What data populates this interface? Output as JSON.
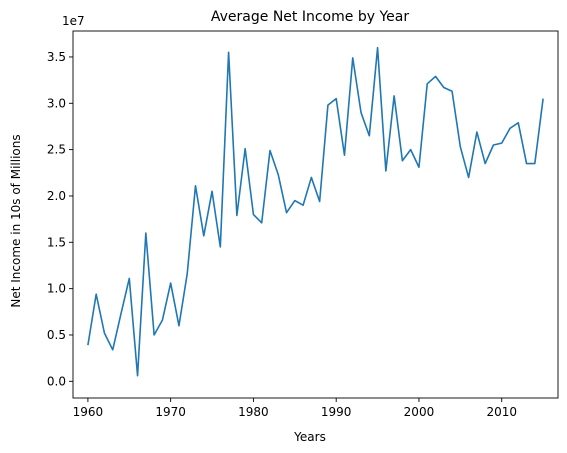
{
  "chart_data": {
    "type": "line",
    "title": "Average Net Income by Year",
    "xlabel": "Years",
    "ylabel": "Net Income in 10s of Millions",
    "offset_label": "1e7",
    "xlim": [
      1958.2,
      2016.8
    ],
    "ylim": [
      -0.18,
      3.78
    ],
    "x_ticks": [
      1960,
      1970,
      1980,
      1990,
      2000,
      2010
    ],
    "y_ticks": [
      0.0,
      0.5,
      1.0,
      1.5,
      2.0,
      2.5,
      3.0,
      3.5
    ],
    "y_tick_labels": [
      "0.0",
      "0.5",
      "1.0",
      "1.5",
      "2.0",
      "2.5",
      "3.0",
      "3.5"
    ],
    "grid": false,
    "line_color": "#1f77b4",
    "series": [
      {
        "x": [
          1960,
          1961,
          1962,
          1963,
          1964,
          1965,
          1966,
          1967,
          1968,
          1969,
          1970,
          1971,
          1972,
          1973,
          1974,
          1975,
          1976,
          1977,
          1978,
          1979,
          1980,
          1981,
          1982,
          1983,
          1984,
          1985,
          1986,
          1987,
          1988,
          1989,
          1990,
          1991,
          1992,
          1993,
          1994,
          1995,
          1996,
          1997,
          1998,
          1999,
          2000,
          2001,
          2002,
          2003,
          2004,
          2005,
          2006,
          2007,
          2008,
          2009,
          2010,
          2011,
          2012,
          2013,
          2014,
          2015
        ],
        "values": [
          0.39,
          0.94,
          0.52,
          0.34,
          0.73,
          1.11,
          0.06,
          1.6,
          0.5,
          0.66,
          1.06,
          0.6,
          1.16,
          2.11,
          1.57,
          2.05,
          1.45,
          3.55,
          1.79,
          2.51,
          1.8,
          1.71,
          2.49,
          2.23,
          1.82,
          1.95,
          1.9,
          2.2,
          1.94,
          2.98,
          3.05,
          2.44,
          3.49,
          2.9,
          2.65,
          3.6,
          2.27,
          3.08,
          2.38,
          2.5,
          2.31,
          3.21,
          3.29,
          3.17,
          3.13,
          2.53,
          2.2,
          2.69,
          2.35,
          2.55,
          2.57,
          2.73,
          2.79,
          2.35,
          2.35,
          3.05
        ]
      }
    ]
  }
}
